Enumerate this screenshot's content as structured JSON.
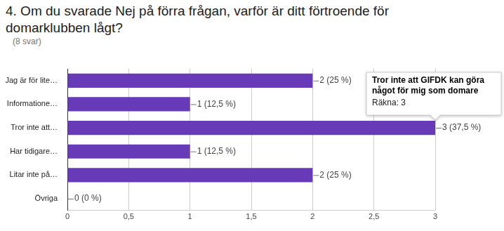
{
  "chart_data": {
    "type": "bar",
    "orientation": "horizontal",
    "title": "4. Om du svarade Nej på förra frågan, varför är ditt förtroende för domarklubben lågt?",
    "subtitle": "(8 svar)",
    "categories": [
      "Jag är för lite…",
      "Informatione…",
      "Tror inte att…",
      "Har tidigare…",
      "Litar inte på…",
      "Övriga"
    ],
    "values": [
      2,
      1,
      3,
      1,
      2,
      0
    ],
    "value_labels": [
      "2 (25 %)",
      "1 (12,5 %)",
      "3 (37,5 %)",
      "1 (12,5 %)",
      "2 (25 %)",
      "0 (0 %)"
    ],
    "data_labels": true,
    "color": "#673ab7",
    "xlim": [
      0,
      3
    ],
    "xticks": [
      0,
      {
        "value": 0.5,
        "label": "0,5"
      },
      1,
      {
        "value": 1.5,
        "label": "1,5"
      },
      2,
      {
        "value": 2.5,
        "label": "2,5"
      },
      3
    ],
    "grid": true,
    "annotation": {
      "title": "Tror inte att GIFDK kan göra något för mig som domare",
      "text": "Räkna: 3"
    }
  }
}
